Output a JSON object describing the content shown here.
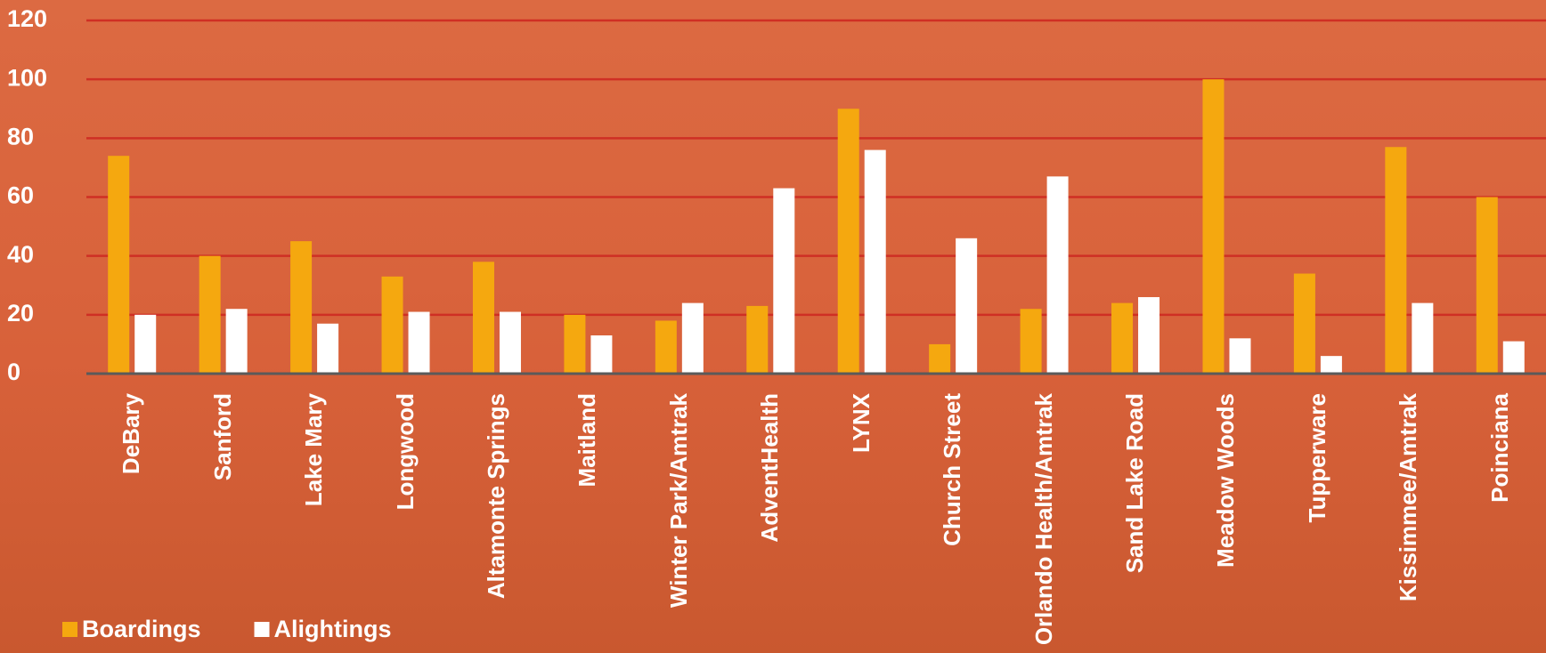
{
  "chart_data": {
    "type": "bar",
    "categories": [
      "DeBary",
      "Sanford",
      "Lake Mary",
      "Longwood",
      "Altamonte Springs",
      "Maitland",
      "Winter Park/Amtrak",
      "AdventHealth",
      "LYNX",
      "Church Street",
      "Orlando Health/Amtrak",
      "Sand Lake Road",
      "Meadow Woods",
      "Tupperware",
      "Kissimmee/Amtrak",
      "Poinciana"
    ],
    "series": [
      {
        "name": "Boardings",
        "color": "#f5a80f",
        "values": [
          74,
          40,
          45,
          33,
          38,
          20,
          18,
          23,
          90,
          10,
          22,
          24,
          100,
          34,
          77,
          60
        ]
      },
      {
        "name": "Alightings",
        "color": "#ffffff",
        "values": [
          20,
          22,
          17,
          21,
          21,
          13,
          24,
          63,
          76,
          46,
          67,
          26,
          12,
          6,
          24,
          11
        ]
      }
    ],
    "ylim": [
      0,
      120
    ],
    "yticks": [
      0,
      20,
      40,
      60,
      80,
      100,
      120
    ],
    "grid": true,
    "legend": "bottom-left"
  }
}
